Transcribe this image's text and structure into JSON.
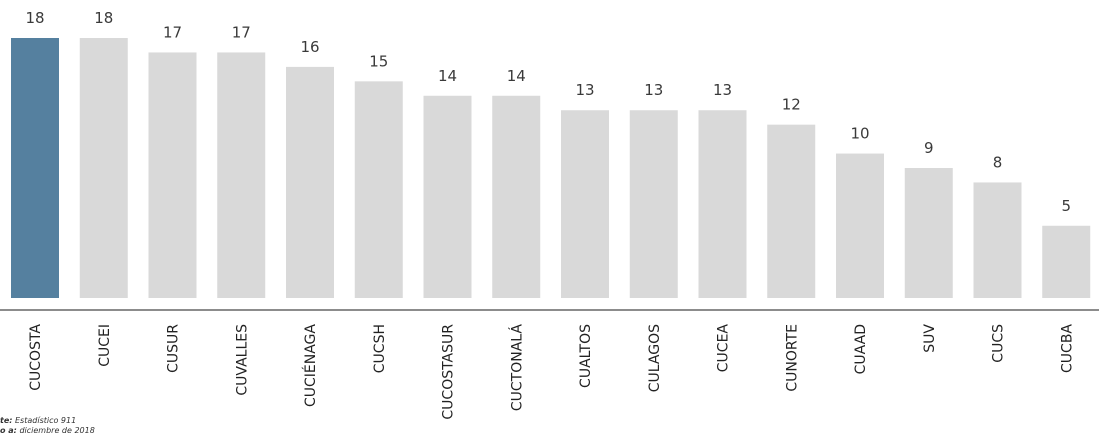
{
  "chart_data": {
    "type": "bar",
    "categories": [
      "CUCOSTA",
      "CUCEI",
      "CUSUR",
      "CUVALLES",
      "CUCIÉNAGA",
      "CUCSH",
      "CUCOSTASUR",
      "CUCTONALÁ",
      "CUALTOS",
      "CULAGOS",
      "CUCEA",
      "CUNORTE",
      "CUAAD",
      "SUV",
      "CUCS",
      "CUCBA"
    ],
    "values": [
      18,
      18,
      17,
      17,
      16,
      15,
      14,
      14,
      13,
      13,
      13,
      12,
      10,
      9,
      8,
      5
    ],
    "ylim": [
      0,
      18
    ],
    "title": "",
    "xlabel": "",
    "ylabel": "",
    "grid": false,
    "colors": {
      "highlight": "#55809f",
      "bar": "#d9d9d9",
      "axis": "#8c8c8c",
      "value_label": "#3a3a3a"
    }
  },
  "footer": {
    "source_label": "te:",
    "source_value": "Estadístico 911",
    "date_label": "o a:",
    "date_value": "diciembre de 2018"
  }
}
